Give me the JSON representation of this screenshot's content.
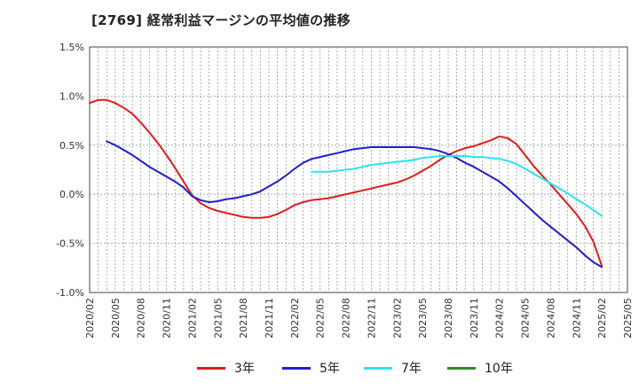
{
  "title": "[2769]  経常利益マージンの平均値の推移",
  "colors": {
    "3y": "#e31a1c",
    "5y": "#1f1fcc",
    "7y": "#26e6f0",
    "10y": "#2b8a2b"
  },
  "chart_data": {
    "type": "line",
    "title": "[2769]  経常利益マージンの平均値の推移",
    "xlabel": "",
    "ylabel": "",
    "y_unit": "%",
    "ylim": [
      -1.0,
      1.5
    ],
    "y_ticks": [
      -1.0,
      -0.5,
      0.0,
      0.5,
      1.0,
      1.5
    ],
    "y_tick_labels": [
      "-1.0%",
      "-0.5%",
      "0.0%",
      "0.5%",
      "1.0%",
      "1.5%"
    ],
    "xlim": [
      "2020-02",
      "2025-05"
    ],
    "x_tick_labels": [
      "2020/02",
      "2020/05",
      "2020/08",
      "2020/11",
      "2021/02",
      "2021/05",
      "2021/08",
      "2021/11",
      "2022/02",
      "2022/05",
      "2022/08",
      "2022/11",
      "2023/02",
      "2023/05",
      "2023/08",
      "2023/11",
      "2024/02",
      "2024/05",
      "2024/08",
      "2024/11",
      "2025/02",
      "2025/05"
    ],
    "grid": true,
    "legend_position": "bottom",
    "series": [
      {
        "name": "3年",
        "color_key": "3y",
        "points": [
          [
            "2020-02",
            0.93
          ],
          [
            "2020-03",
            0.96
          ],
          [
            "2020-04",
            0.96
          ],
          [
            "2020-05",
            0.93
          ],
          [
            "2020-06",
            0.88
          ],
          [
            "2020-07",
            0.82
          ],
          [
            "2020-08",
            0.73
          ],
          [
            "2020-09",
            0.63
          ],
          [
            "2020-10",
            0.52
          ],
          [
            "2020-11",
            0.4
          ],
          [
            "2020-12",
            0.27
          ],
          [
            "2021-01",
            0.13
          ],
          [
            "2021-02",
            -0.01
          ],
          [
            "2021-03",
            -0.09
          ],
          [
            "2021-04",
            -0.14
          ],
          [
            "2021-05",
            -0.17
          ],
          [
            "2021-06",
            -0.19
          ],
          [
            "2021-07",
            -0.21
          ],
          [
            "2021-08",
            -0.23
          ],
          [
            "2021-09",
            -0.24
          ],
          [
            "2021-10",
            -0.24
          ],
          [
            "2021-11",
            -0.23
          ],
          [
            "2021-12",
            -0.2
          ],
          [
            "2022-01",
            -0.16
          ],
          [
            "2022-02",
            -0.11
          ],
          [
            "2022-03",
            -0.08
          ],
          [
            "2022-04",
            -0.06
          ],
          [
            "2022-05",
            -0.05
          ],
          [
            "2022-06",
            -0.04
          ],
          [
            "2022-07",
            -0.02
          ],
          [
            "2022-08",
            0.0
          ],
          [
            "2022-09",
            0.02
          ],
          [
            "2022-10",
            0.04
          ],
          [
            "2022-11",
            0.06
          ],
          [
            "2022-12",
            0.08
          ],
          [
            "2023-01",
            0.1
          ],
          [
            "2023-02",
            0.12
          ],
          [
            "2023-03",
            0.15
          ],
          [
            "2023-04",
            0.19
          ],
          [
            "2023-05",
            0.24
          ],
          [
            "2023-06",
            0.29
          ],
          [
            "2023-07",
            0.35
          ],
          [
            "2023-08",
            0.4
          ],
          [
            "2023-09",
            0.44
          ],
          [
            "2023-10",
            0.47
          ],
          [
            "2023-11",
            0.49
          ],
          [
            "2023-12",
            0.52
          ],
          [
            "2024-01",
            0.55
          ],
          [
            "2024-02",
            0.59
          ],
          [
            "2024-03",
            0.57
          ],
          [
            "2024-04",
            0.51
          ],
          [
            "2024-05",
            0.4
          ],
          [
            "2024-06",
            0.29
          ],
          [
            "2024-07",
            0.19
          ],
          [
            "2024-08",
            0.1
          ],
          [
            "2024-09",
            0.0
          ],
          [
            "2024-10",
            -0.1
          ],
          [
            "2024-11",
            -0.2
          ],
          [
            "2024-12",
            -0.32
          ],
          [
            "2025-01",
            -0.48
          ],
          [
            "2025-02",
            -0.73
          ]
        ]
      },
      {
        "name": "5年",
        "color_key": "5y",
        "points": [
          [
            "2020-04",
            0.54
          ],
          [
            "2020-05",
            0.5
          ],
          [
            "2020-06",
            0.45
          ],
          [
            "2020-07",
            0.4
          ],
          [
            "2020-08",
            0.34
          ],
          [
            "2020-09",
            0.28
          ],
          [
            "2020-10",
            0.23
          ],
          [
            "2020-11",
            0.18
          ],
          [
            "2020-12",
            0.13
          ],
          [
            "2021-01",
            0.07
          ],
          [
            "2021-02",
            -0.02
          ],
          [
            "2021-03",
            -0.06
          ],
          [
            "2021-04",
            -0.08
          ],
          [
            "2021-05",
            -0.07
          ],
          [
            "2021-06",
            -0.05
          ],
          [
            "2021-07",
            -0.04
          ],
          [
            "2021-08",
            -0.02
          ],
          [
            "2021-09",
            0.0
          ],
          [
            "2021-10",
            0.03
          ],
          [
            "2021-11",
            0.08
          ],
          [
            "2021-12",
            0.13
          ],
          [
            "2022-01",
            0.19
          ],
          [
            "2022-02",
            0.26
          ],
          [
            "2022-03",
            0.32
          ],
          [
            "2022-04",
            0.36
          ],
          [
            "2022-05",
            0.38
          ],
          [
            "2022-06",
            0.4
          ],
          [
            "2022-07",
            0.42
          ],
          [
            "2022-08",
            0.44
          ],
          [
            "2022-09",
            0.46
          ],
          [
            "2022-10",
            0.47
          ],
          [
            "2022-11",
            0.48
          ],
          [
            "2022-12",
            0.48
          ],
          [
            "2023-01",
            0.48
          ],
          [
            "2023-02",
            0.48
          ],
          [
            "2023-03",
            0.48
          ],
          [
            "2023-04",
            0.48
          ],
          [
            "2023-05",
            0.47
          ],
          [
            "2023-06",
            0.46
          ],
          [
            "2023-07",
            0.44
          ],
          [
            "2023-08",
            0.41
          ],
          [
            "2023-09",
            0.37
          ],
          [
            "2023-10",
            0.32
          ],
          [
            "2023-11",
            0.28
          ],
          [
            "2023-12",
            0.23
          ],
          [
            "2024-01",
            0.18
          ],
          [
            "2024-02",
            0.13
          ],
          [
            "2024-03",
            0.06
          ],
          [
            "2024-04",
            -0.02
          ],
          [
            "2024-05",
            -0.1
          ],
          [
            "2024-06",
            -0.18
          ],
          [
            "2024-07",
            -0.26
          ],
          [
            "2024-08",
            -0.33
          ],
          [
            "2024-09",
            -0.4
          ],
          [
            "2024-10",
            -0.47
          ],
          [
            "2024-11",
            -0.54
          ],
          [
            "2024-12",
            -0.62
          ],
          [
            "2025-01",
            -0.69
          ],
          [
            "2025-02",
            -0.74
          ]
        ]
      },
      {
        "name": "7年",
        "color_key": "7y",
        "points": [
          [
            "2022-04",
            0.23
          ],
          [
            "2022-05",
            0.23
          ],
          [
            "2022-06",
            0.23
          ],
          [
            "2022-07",
            0.24
          ],
          [
            "2022-08",
            0.25
          ],
          [
            "2022-09",
            0.26
          ],
          [
            "2022-10",
            0.28
          ],
          [
            "2022-11",
            0.3
          ],
          [
            "2022-12",
            0.31
          ],
          [
            "2023-01",
            0.32
          ],
          [
            "2023-02",
            0.33
          ],
          [
            "2023-03",
            0.34
          ],
          [
            "2023-04",
            0.35
          ],
          [
            "2023-05",
            0.37
          ],
          [
            "2023-06",
            0.38
          ],
          [
            "2023-07",
            0.39
          ],
          [
            "2023-08",
            0.39
          ],
          [
            "2023-09",
            0.39
          ],
          [
            "2023-10",
            0.39
          ],
          [
            "2023-11",
            0.38
          ],
          [
            "2023-12",
            0.38
          ],
          [
            "2024-01",
            0.37
          ],
          [
            "2024-02",
            0.36
          ],
          [
            "2024-03",
            0.34
          ],
          [
            "2024-04",
            0.31
          ],
          [
            "2024-05",
            0.26
          ],
          [
            "2024-06",
            0.21
          ],
          [
            "2024-07",
            0.16
          ],
          [
            "2024-08",
            0.11
          ],
          [
            "2024-09",
            0.06
          ],
          [
            "2024-10",
            0.01
          ],
          [
            "2024-11",
            -0.05
          ],
          [
            "2024-12",
            -0.1
          ],
          [
            "2025-01",
            -0.16
          ],
          [
            "2025-02",
            -0.22
          ]
        ]
      },
      {
        "name": "10年",
        "color_key": "10y",
        "points": []
      }
    ]
  }
}
